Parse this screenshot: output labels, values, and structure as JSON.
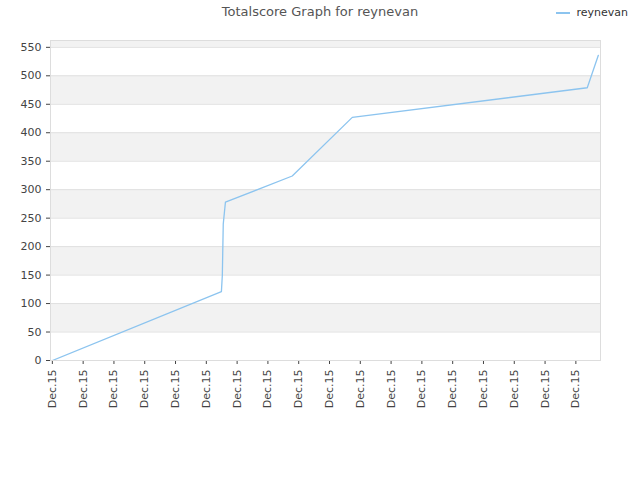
{
  "chart_data": {
    "type": "line",
    "title": "Totalscore Graph for reynevan",
    "x": [
      0,
      5.49,
      5.52,
      5.55,
      5.62,
      7.79,
      9.74,
      17.37,
      17.73
    ],
    "series": [
      {
        "name": "reynevan",
        "color": "#8cc4ef",
        "values": [
          0,
          121,
          150,
          240,
          278,
          324,
          427,
          479,
          536
        ]
      }
    ],
    "xlim": [
      -0.06,
      17.8
    ],
    "xticks": [
      {
        "value": 0,
        "label": "Dec.15"
      },
      {
        "value": 1,
        "label": "Dec.15"
      },
      {
        "value": 2,
        "label": "Dec.15"
      },
      {
        "value": 3,
        "label": "Dec.15"
      },
      {
        "value": 4,
        "label": "Dec.15"
      },
      {
        "value": 5,
        "label": "Dec.15"
      },
      {
        "value": 6,
        "label": "Dec.15"
      },
      {
        "value": 7,
        "label": "Dec.15"
      },
      {
        "value": 8,
        "label": "Dec.15"
      },
      {
        "value": 9,
        "label": "Dec.15"
      },
      {
        "value": 10,
        "label": "Dec.15"
      },
      {
        "value": 11,
        "label": "Dec.15"
      },
      {
        "value": 12,
        "label": "Dec.15"
      },
      {
        "value": 13,
        "label": "Dec.15"
      },
      {
        "value": 14,
        "label": "Dec.15"
      },
      {
        "value": 15,
        "label": "Dec.15"
      },
      {
        "value": 16,
        "label": "Dec.15"
      },
      {
        "value": 17,
        "label": "Dec.15"
      }
    ],
    "ylim": [
      0,
      562
    ],
    "yticks": [
      0,
      50,
      100,
      150,
      200,
      250,
      300,
      350,
      400,
      450,
      500,
      550
    ],
    "grid": true,
    "legend": "top-right"
  }
}
